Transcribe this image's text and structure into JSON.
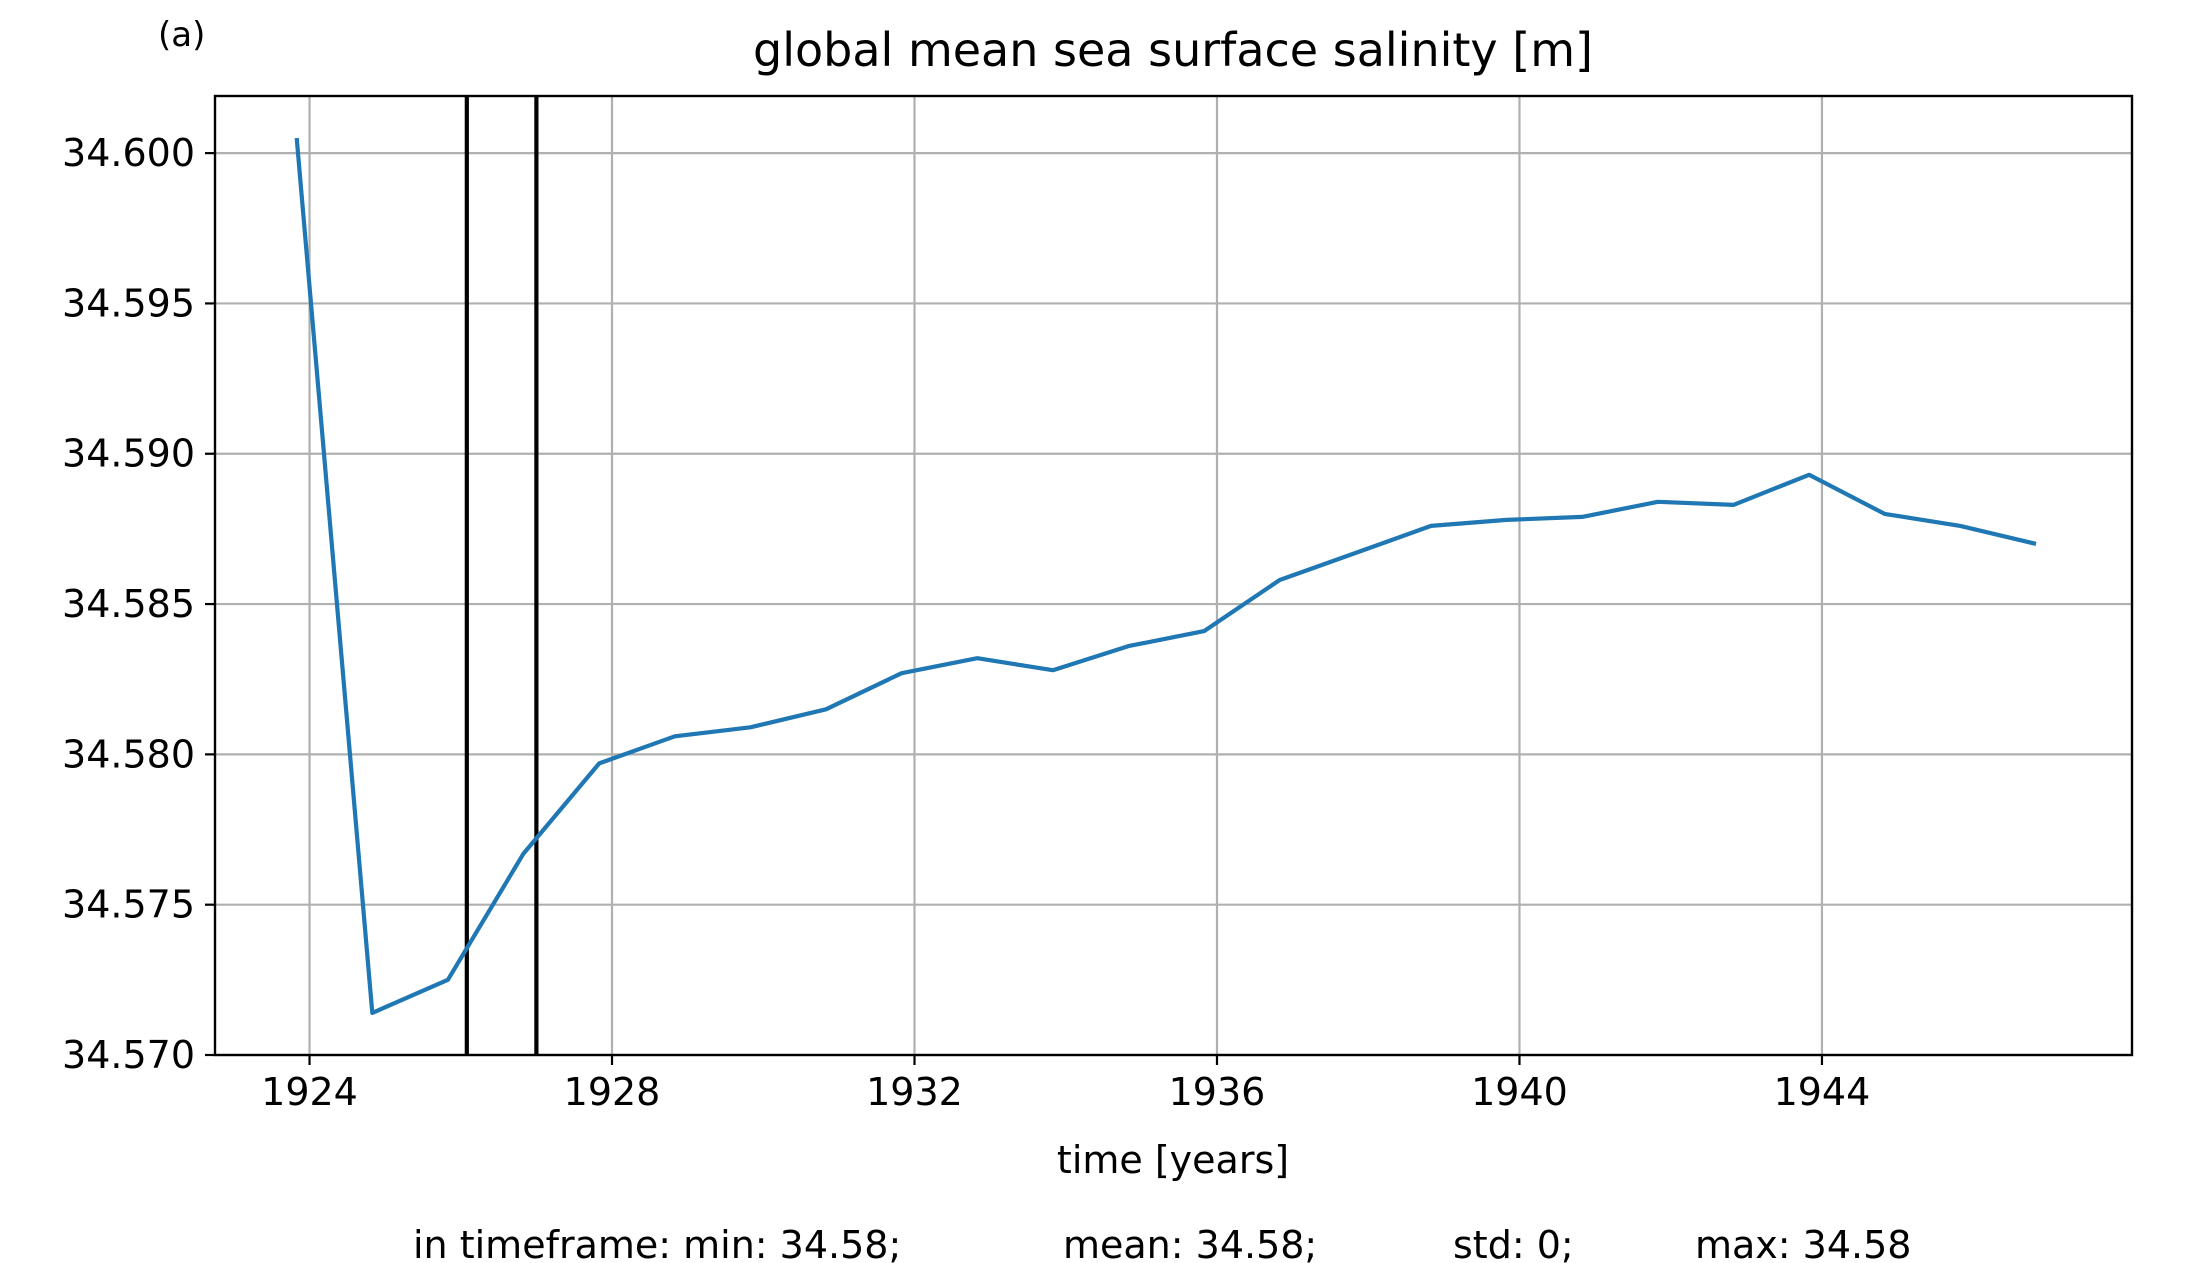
{
  "panel_label": "(a)",
  "footer": {
    "min": "in timeframe: min: 34.58;",
    "mean": "mean: 34.58;",
    "std": "std: 0;",
    "max": "max: 34.58"
  },
  "colors": {
    "line": "#1f77b4",
    "grid": "#b0b0b0",
    "markers": "#000000",
    "axes": "#000000"
  },
  "chart_data": {
    "type": "line",
    "title": "global mean sea surface salinity [m]",
    "xlabel": "time [years]",
    "ylabel": "",
    "xlim": [
      1922.75,
      1948.1
    ],
    "ylim": [
      34.57,
      34.6019
    ],
    "grid": true,
    "x_ticks": [
      1924,
      1928,
      1932,
      1936,
      1940,
      1944
    ],
    "x_tick_labels": [
      "1924",
      "1928",
      "1932",
      "1936",
      "1940",
      "1944"
    ],
    "y_ticks": [
      34.57,
      34.575,
      34.58,
      34.585,
      34.59,
      34.595,
      34.6
    ],
    "y_tick_labels": [
      "34.570",
      "34.575",
      "34.580",
      "34.585",
      "34.590",
      "34.595",
      "34.600"
    ],
    "vertical_lines": [
      1926.08,
      1927.0
    ],
    "series": [
      {
        "x": [
          1923.83,
          1924.83,
          1925.83,
          1926.83,
          1927.83,
          1928.83,
          1929.83,
          1930.83,
          1931.83,
          1932.83,
          1933.83,
          1934.83,
          1935.83,
          1936.83,
          1937.83,
          1938.83,
          1939.83,
          1940.83,
          1941.83,
          1942.83,
          1943.83,
          1944.83,
          1945.83,
          1946.83
        ],
        "y": [
          34.6005,
          34.5714,
          34.5725,
          34.5767,
          34.5797,
          34.5806,
          34.5809,
          34.5815,
          34.5827,
          34.5832,
          34.5828,
          34.5836,
          34.5841,
          34.5858,
          34.5867,
          34.5876,
          34.5878,
          34.5879,
          34.5884,
          34.5883,
          34.5893,
          34.588,
          34.5876,
          34.587
        ]
      }
    ]
  }
}
